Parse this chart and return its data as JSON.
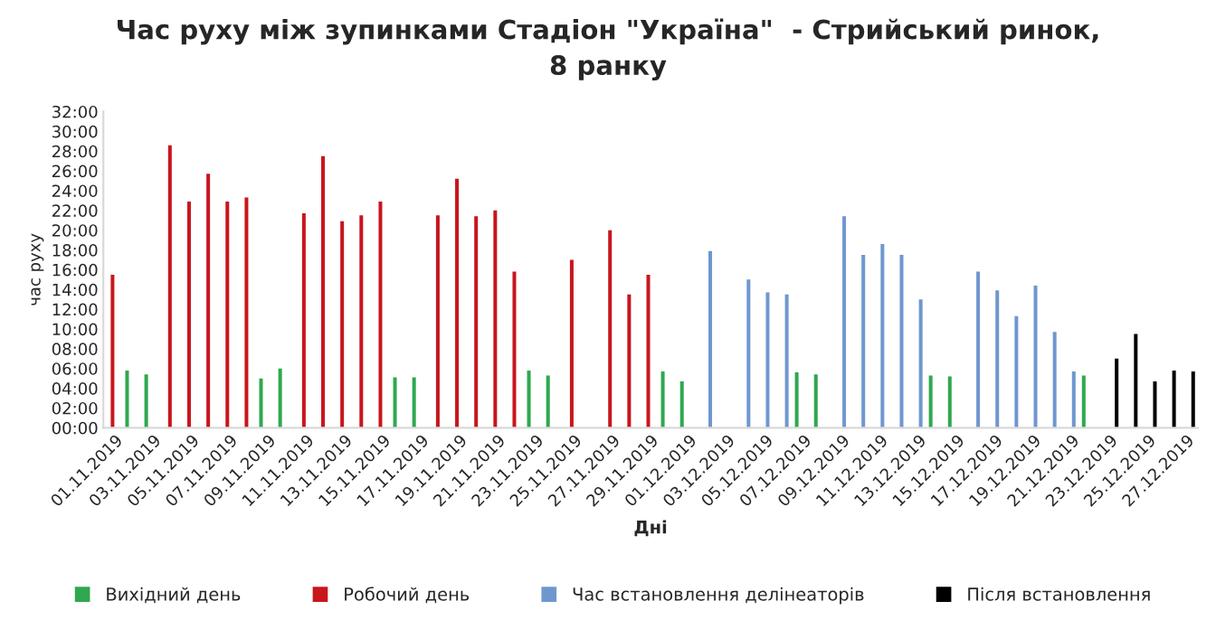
{
  "chart_data": {
    "type": "bar",
    "title": "Час руху між зупинками Стадіон \"Україна\"  - Стрийський ринок,\n8 ранку",
    "xlabel": "Дні",
    "ylabel": "час руху",
    "categories": [
      "01.11.2019",
      null,
      "03.11.2019",
      null,
      "05.11.2019",
      null,
      "07.11.2019",
      null,
      "09.11.2019",
      null,
      "11.11.2019",
      null,
      "13.11.2019",
      null,
      "15.11.2019",
      null,
      "17.11.2019",
      null,
      "19.11.2019",
      null,
      "21.11.2019",
      null,
      "23.11.2019",
      null,
      "25.11.2019",
      null,
      "27.11.2019",
      null,
      "29.11.2019",
      null,
      "01.12.2019",
      null,
      "03.12.2019",
      null,
      "05.12.2019",
      null,
      "07.12.2019",
      null,
      "09.12.2019",
      null,
      "11.12.2019",
      null,
      "13.12.2019",
      null,
      "15.12.2019",
      null,
      "17.12.2019",
      null,
      "19.12.2019",
      null,
      "21.12.2019",
      null,
      "23.12.2019",
      null,
      "25.12.2019",
      null,
      "27.12.2019"
    ],
    "series": [
      {
        "name": "Вихідний день",
        "color": "#2fa84f",
        "values": [
          null,
          5.8,
          5.4,
          null,
          null,
          null,
          null,
          null,
          5.0,
          6.0,
          null,
          null,
          null,
          null,
          null,
          5.1,
          5.1,
          null,
          null,
          null,
          null,
          null,
          5.8,
          5.3,
          null,
          null,
          null,
          null,
          null,
          5.7,
          4.7,
          null,
          null,
          null,
          null,
          null,
          5.6,
          5.4,
          null,
          null,
          null,
          null,
          null,
          5.3,
          5.2,
          null,
          null,
          null,
          null,
          null,
          null,
          5.3,
          null,
          null,
          null,
          null,
          null
        ]
      },
      {
        "name": "Робочий день",
        "color": "#c8161d",
        "values": [
          15.5,
          null,
          null,
          28.6,
          22.9,
          25.7,
          22.9,
          23.3,
          null,
          null,
          21.7,
          27.5,
          20.9,
          21.5,
          22.9,
          null,
          null,
          21.5,
          25.2,
          21.4,
          22.0,
          15.8,
          null,
          null,
          17.0,
          null,
          20.0,
          13.5,
          15.5,
          null,
          null,
          null,
          null,
          null,
          null,
          null,
          null,
          null,
          null,
          null,
          null,
          null,
          null,
          null,
          null,
          null,
          null,
          null,
          null,
          null,
          null,
          null,
          null,
          null,
          null,
          null,
          null
        ]
      },
      {
        "name": "Час встановлення делінеаторів",
        "color": "#6f97cf",
        "values": [
          null,
          null,
          null,
          null,
          null,
          null,
          null,
          null,
          null,
          null,
          null,
          null,
          null,
          null,
          null,
          null,
          null,
          null,
          null,
          null,
          null,
          null,
          null,
          null,
          null,
          null,
          null,
          null,
          null,
          null,
          null,
          17.9,
          null,
          15.0,
          13.7,
          13.5,
          null,
          null,
          21.4,
          17.5,
          18.6,
          17.5,
          13.0,
          null,
          null,
          15.8,
          13.9,
          11.3,
          14.4,
          9.7,
          5.7,
          null,
          null,
          null,
          null,
          null,
          null
        ]
      },
      {
        "name": "Після встановлення",
        "color": "#000000",
        "values": [
          null,
          null,
          null,
          null,
          null,
          null,
          null,
          null,
          null,
          null,
          null,
          null,
          null,
          null,
          null,
          null,
          null,
          null,
          null,
          null,
          null,
          null,
          null,
          null,
          null,
          null,
          null,
          null,
          null,
          null,
          null,
          null,
          null,
          null,
          null,
          null,
          null,
          null,
          null,
          null,
          null,
          null,
          null,
          null,
          null,
          null,
          null,
          null,
          null,
          null,
          null,
          null,
          7.0,
          9.5,
          4.7,
          5.8,
          5.7
        ]
      }
    ],
    "ylim": [
      0,
      32
    ],
    "yticks": [
      {
        "value": 0,
        "label": "00:00"
      },
      {
        "value": 2,
        "label": "02:00"
      },
      {
        "value": 4,
        "label": "04:00"
      },
      {
        "value": 6,
        "label": "06:00"
      },
      {
        "value": 8,
        "label": "08:00"
      },
      {
        "value": 10,
        "label": "10:00"
      },
      {
        "value": 12,
        "label": "12:00"
      },
      {
        "value": 14,
        "label": "14:00"
      },
      {
        "value": 16,
        "label": "16:00"
      },
      {
        "value": 18,
        "label": "18:00"
      },
      {
        "value": 20,
        "label": "20:00"
      },
      {
        "value": 22,
        "label": "22:00"
      },
      {
        "value": 24,
        "label": "24:00"
      },
      {
        "value": 26,
        "label": "26:00"
      },
      {
        "value": 28,
        "label": "28:00"
      },
      {
        "value": 30,
        "label": "30:00"
      },
      {
        "value": 32,
        "label": "32:00"
      }
    ],
    "grid": false,
    "legend": "bottom"
  }
}
